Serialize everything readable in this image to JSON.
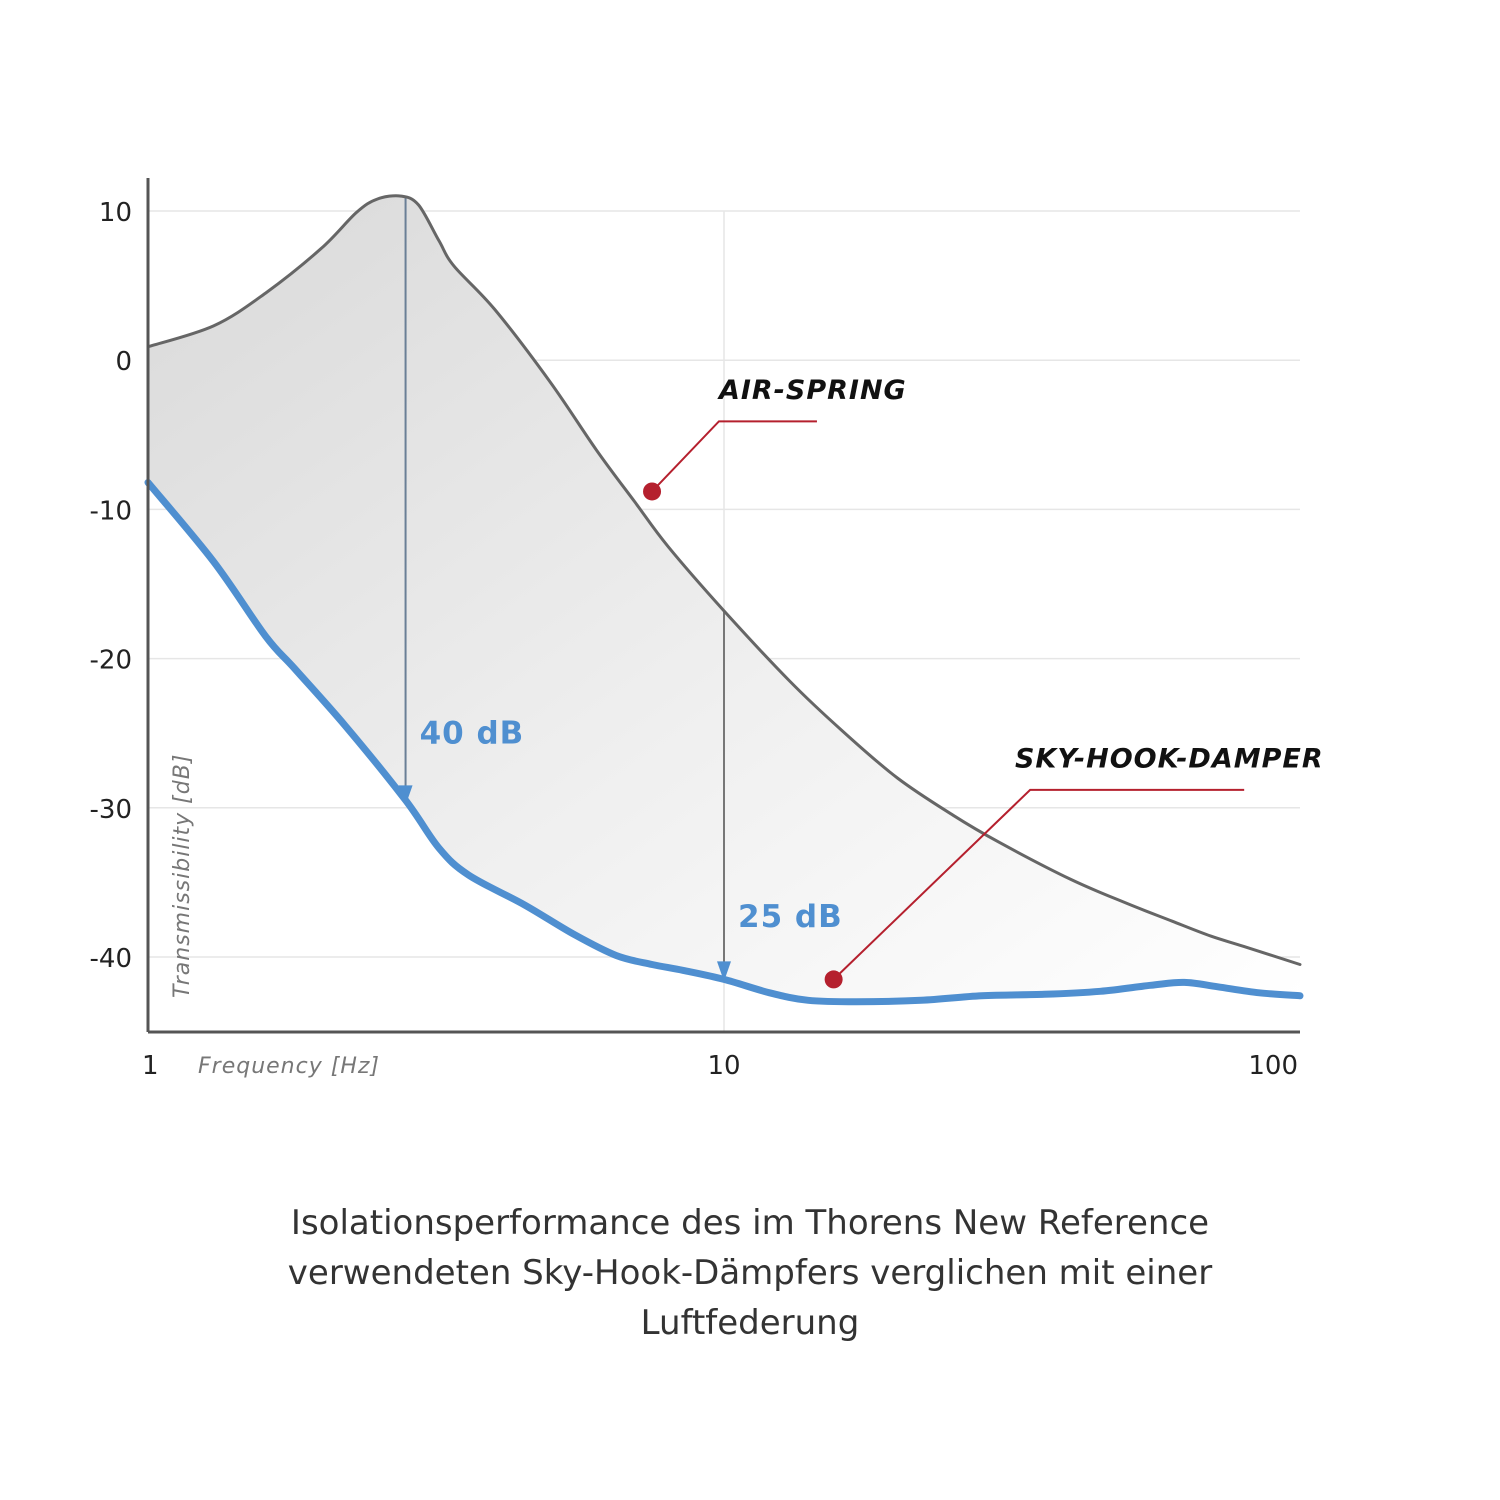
{
  "chart_data": {
    "type": "line",
    "xscale": "log",
    "xlim": [
      1,
      100
    ],
    "ylim": [
      -45,
      12
    ],
    "xticks": [
      "1",
      "10",
      "100"
    ],
    "xtick_values": [
      1,
      10,
      100
    ],
    "yticks": [
      "10",
      "0",
      "-10",
      "-20",
      "-30",
      "-40"
    ],
    "ytick_values": [
      10,
      0,
      -10,
      -20,
      -30,
      -40
    ],
    "xlabel": "Frequency [Hz]",
    "ylabel": "Transmissibility [dB]",
    "grid": true,
    "series": [
      {
        "name": "AIR-SPRING",
        "color": "#666666",
        "points": [
          [
            1,
            0.9
          ],
          [
            1.3,
            2.3
          ],
          [
            1.6,
            4.5
          ],
          [
            2.0,
            7.5
          ],
          [
            2.3,
            9.9
          ],
          [
            2.5,
            10.8
          ],
          [
            2.75,
            11.0
          ],
          [
            2.95,
            10.4
          ],
          [
            3.2,
            8.0
          ],
          [
            3.4,
            6.3
          ],
          [
            4.0,
            3.4
          ],
          [
            5.0,
            -1.5
          ],
          [
            6.0,
            -6.0
          ],
          [
            7.0,
            -9.5
          ],
          [
            8.0,
            -12.5
          ],
          [
            10.0,
            -16.8
          ],
          [
            13.0,
            -21.5
          ],
          [
            16.0,
            -24.8
          ],
          [
            20.0,
            -28.0
          ],
          [
            25.0,
            -30.5
          ],
          [
            30.0,
            -32.3
          ],
          [
            40.0,
            -34.8
          ],
          [
            50.0,
            -36.4
          ],
          [
            60.0,
            -37.6
          ],
          [
            70.0,
            -38.6
          ],
          [
            80.0,
            -39.3
          ],
          [
            100.0,
            -40.5
          ]
        ]
      },
      {
        "name": "SKY-HOOK-DAMPER",
        "color": "#4f8fd0",
        "points": [
          [
            1,
            -8.2
          ],
          [
            1.3,
            -13.5
          ],
          [
            1.6,
            -18.5
          ],
          [
            1.8,
            -20.7
          ],
          [
            2.2,
            -24.5
          ],
          [
            2.8,
            -29.5
          ],
          [
            3.2,
            -32.7
          ],
          [
            3.6,
            -34.5
          ],
          [
            4.5,
            -36.5
          ],
          [
            5.5,
            -38.5
          ],
          [
            6.5,
            -39.9
          ],
          [
            7.5,
            -40.5
          ],
          [
            8.5,
            -40.9
          ],
          [
            10.0,
            -41.5
          ],
          [
            12.0,
            -42.4
          ],
          [
            14.0,
            -42.9
          ],
          [
            17.0,
            -43.0
          ],
          [
            22.0,
            -42.9
          ],
          [
            28.0,
            -42.6
          ],
          [
            36.0,
            -42.5
          ],
          [
            45.0,
            -42.3
          ],
          [
            55.0,
            -41.9
          ],
          [
            63.0,
            -41.7
          ],
          [
            72.0,
            -42.0
          ],
          [
            85.0,
            -42.4
          ],
          [
            100.0,
            -42.6
          ]
        ]
      }
    ],
    "annotations": [
      {
        "text": "40 dB",
        "x": 2.8,
        "from": 11.0,
        "to": -29.7,
        "label_y": -25.7,
        "color": "#4f8fd0"
      },
      {
        "text": "25 dB",
        "x": 10.0,
        "from": -16.8,
        "to": -41.5,
        "label_y": -38.0,
        "color": "#4f8fd0"
      }
    ],
    "callouts": [
      {
        "text": "AIR-SPRING",
        "point": [
          7.5,
          -8.8
        ],
        "elbow": [
          9.8,
          -4.1
        ],
        "end": [
          14.5,
          -4.1
        ],
        "label_at": [
          9.8,
          -2.6
        ]
      },
      {
        "text": "SKY-HOOK-DAMPER",
        "point": [
          15.5,
          -41.5
        ],
        "elbow": [
          34.0,
          -28.8
        ],
        "end": [
          80.0,
          -28.8
        ],
        "label_at": [
          32.0,
          -27.3
        ]
      }
    ]
  },
  "caption": {
    "line1": "Isolationsperformance des im Thorens New Reference",
    "line2": "verwendeten Sky-Hook-Dämpfers verglichen mit einer",
    "line3": "Luftfederung"
  }
}
